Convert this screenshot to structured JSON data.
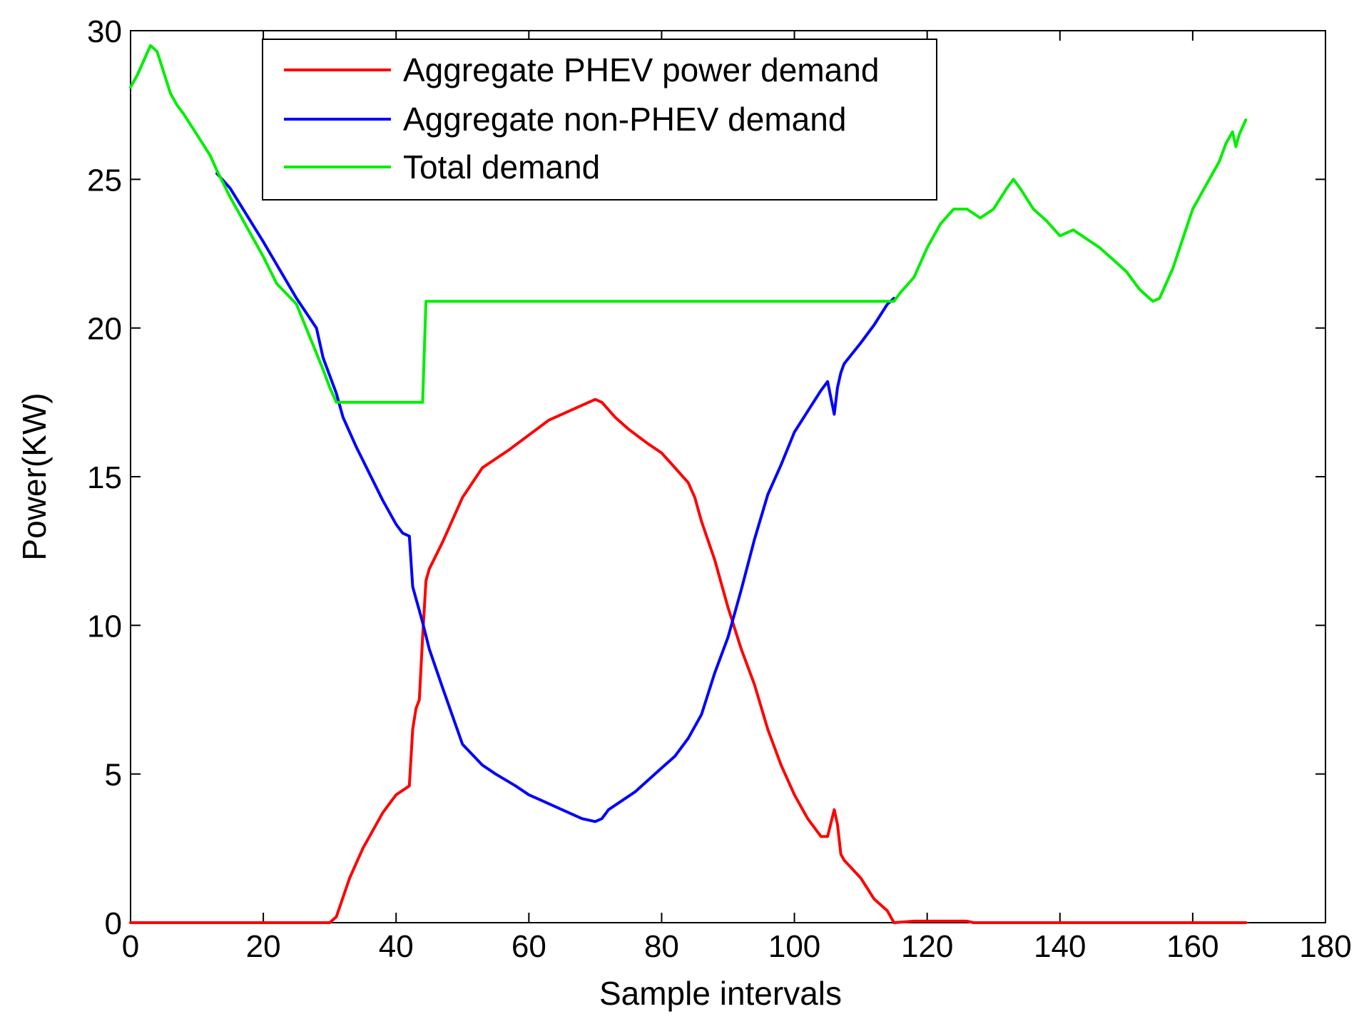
{
  "chart_data": {
    "type": "line",
    "title": "",
    "xlabel": "Sample intervals",
    "ylabel": "Power(KW)",
    "xlim": [
      0,
      180
    ],
    "ylim": [
      0,
      30
    ],
    "xticks": [
      0,
      20,
      40,
      60,
      80,
      100,
      120,
      140,
      160,
      180
    ],
    "yticks": [
      0,
      5,
      10,
      15,
      20,
      25,
      30
    ],
    "grid": false,
    "legend_position": "top-left",
    "series": [
      {
        "name": "Aggregate PHEV power demand",
        "color": "#ff0000",
        "x": [
          0,
          5,
          10,
          15,
          20,
          25,
          30,
          31,
          33,
          35,
          38,
          40,
          42,
          42.5,
          43,
          43.5,
          44,
          44.5,
          45,
          47,
          50,
          53,
          55,
          57,
          60,
          63,
          66,
          69,
          70,
          71,
          73,
          75,
          78,
          80,
          82,
          84,
          85,
          86,
          88,
          90,
          92,
          94,
          96,
          98,
          100,
          102,
          104,
          105,
          106,
          106.5,
          107,
          107.5,
          110,
          112,
          114,
          115,
          118,
          126,
          127,
          140,
          150,
          160,
          168
        ],
        "y": [
          0,
          0,
          0,
          0,
          0,
          0,
          0,
          0.2,
          1.5,
          2.5,
          3.7,
          4.3,
          4.6,
          6.5,
          7.2,
          7.5,
          9.6,
          11.5,
          11.9,
          12.8,
          14.3,
          15.3,
          15.6,
          15.9,
          16.4,
          16.9,
          17.2,
          17.5,
          17.6,
          17.5,
          17.0,
          16.6,
          16.1,
          15.8,
          15.3,
          14.8,
          14.3,
          13.5,
          12.2,
          10.6,
          9.2,
          8.0,
          6.5,
          5.3,
          4.3,
          3.5,
          2.9,
          2.9,
          3.8,
          3.3,
          2.3,
          2.1,
          1.5,
          0.8,
          0.4,
          0,
          0.05,
          0.05,
          0,
          0,
          0,
          0,
          0
        ]
      },
      {
        "name": "Aggregate non-PHEV demand",
        "color": "#0000ff",
        "x": [
          13,
          15,
          20,
          25,
          28,
          29,
          31,
          32,
          34,
          36,
          38,
          40,
          41,
          42,
          42.5,
          43,
          43.5,
          44,
          45,
          47,
          50,
          53,
          55,
          58,
          60,
          63,
          65,
          68,
          70,
          71,
          72,
          74,
          76,
          78,
          80,
          82,
          84,
          86,
          88,
          90,
          92,
          94,
          96,
          98,
          100,
          102,
          104,
          105,
          106,
          106.5,
          107,
          107.5,
          110,
          112,
          114,
          115
        ],
        "y": [
          25.2,
          24.7,
          22.9,
          21.0,
          20.0,
          19.0,
          17.8,
          17.0,
          16.0,
          15.1,
          14.2,
          13.4,
          13.1,
          13.0,
          11.3,
          10.9,
          10.5,
          10.1,
          9.2,
          7.9,
          6.0,
          5.3,
          5.0,
          4.6,
          4.3,
          4.0,
          3.8,
          3.5,
          3.4,
          3.5,
          3.8,
          4.1,
          4.4,
          4.8,
          5.2,
          5.6,
          6.2,
          7.0,
          8.4,
          9.6,
          11.2,
          12.9,
          14.4,
          15.4,
          16.5,
          17.2,
          17.9,
          18.2,
          17.1,
          18.0,
          18.5,
          18.8,
          19.5,
          20.1,
          20.8,
          21.0
        ]
      },
      {
        "name": "Total demand",
        "color": "#00ee00",
        "x": [
          0,
          1,
          2,
          3,
          4,
          5,
          6,
          7,
          8,
          10,
          12,
          13,
          15,
          18,
          20,
          22,
          25,
          27,
          29,
          30,
          31,
          44,
          44.5,
          45,
          115,
          116,
          118,
          120,
          122,
          124,
          126,
          128,
          130,
          132,
          133,
          134,
          136,
          138,
          140,
          142,
          144,
          146,
          148,
          150,
          152,
          154,
          155,
          157,
          160,
          162,
          164,
          165,
          166,
          166.5,
          167,
          168
        ],
        "y": [
          28.1,
          28.5,
          29.0,
          29.5,
          29.3,
          28.6,
          27.9,
          27.5,
          27.2,
          26.5,
          25.8,
          25.3,
          24.4,
          23.2,
          22.4,
          21.5,
          20.8,
          19.7,
          18.6,
          18.0,
          17.5,
          17.5,
          20.9,
          20.9,
          20.9,
          21.2,
          21.7,
          22.7,
          23.5,
          24.0,
          24.0,
          23.7,
          24.0,
          24.7,
          25.0,
          24.7,
          24.0,
          23.6,
          23.1,
          23.3,
          23.0,
          22.7,
          22.3,
          21.9,
          21.3,
          20.9,
          21.0,
          22.0,
          24.0,
          24.8,
          25.6,
          26.2,
          26.6,
          26.1,
          26.5,
          27.0
        ]
      }
    ]
  }
}
